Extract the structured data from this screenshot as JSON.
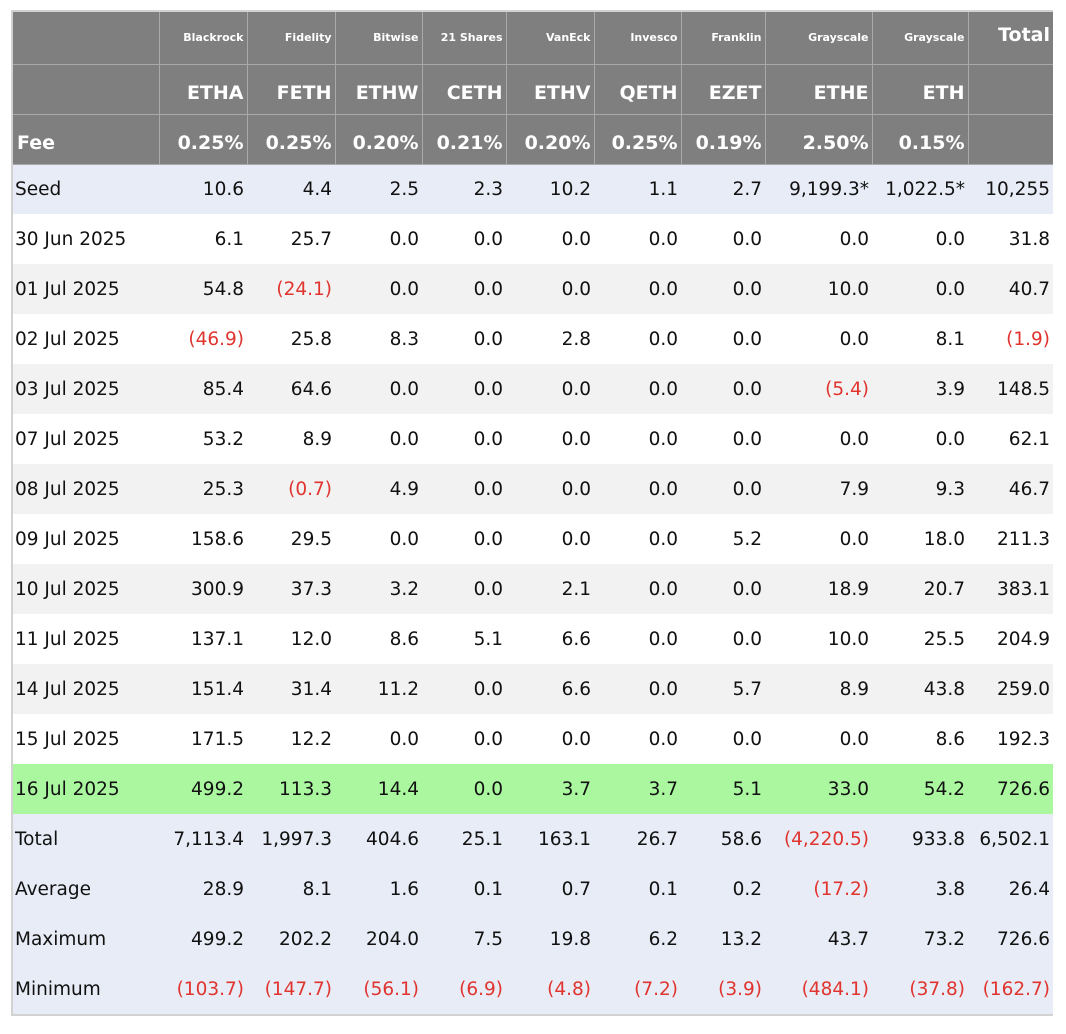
{
  "columns": [
    {
      "issuer": "Blackrock",
      "ticker": "ETHA",
      "fee": "0.25%"
    },
    {
      "issuer": "Fidelity",
      "ticker": "FETH",
      "fee": "0.25%"
    },
    {
      "issuer": "Bitwise",
      "ticker": "ETHW",
      "fee": "0.20%"
    },
    {
      "issuer": "21 Shares",
      "ticker": "CETH",
      "fee": "0.21%"
    },
    {
      "issuer": "VanEck",
      "ticker": "ETHV",
      "fee": "0.20%"
    },
    {
      "issuer": "Invesco",
      "ticker": "QETH",
      "fee": "0.25%"
    },
    {
      "issuer": "Franklin",
      "ticker": "EZET",
      "fee": "0.19%"
    },
    {
      "issuer": "Grayscale",
      "ticker": "ETHE",
      "fee": "2.50%"
    },
    {
      "issuer": "Grayscale",
      "ticker": "ETH",
      "fee": "0.15%"
    }
  ],
  "header": {
    "total_label": "Total",
    "fee_label": "Fee"
  },
  "colors": {
    "header_bg": "#7f7f7f",
    "summary_bg": "#e8ecf6",
    "stripe_bg": "#f2f2f2",
    "highlight_bg": "#aaf7a0",
    "negative_text": "#e0342f"
  },
  "rows": [
    {
      "label": "Seed",
      "style": "seed",
      "values": [
        "10.6",
        "4.4",
        "2.5",
        "2.3",
        "10.2",
        "1.1",
        "2.7",
        "9,199.3*",
        "1,022.5*",
        "10,255"
      ]
    },
    {
      "label": "30 Jun 2025",
      "style": "band-white",
      "values": [
        "6.1",
        "25.7",
        "0.0",
        "0.0",
        "0.0",
        "0.0",
        "0.0",
        "0.0",
        "0.0",
        "31.8"
      ]
    },
    {
      "label": "01 Jul 2025",
      "style": "band-grey",
      "values": [
        "54.8",
        "(24.1)",
        "0.0",
        "0.0",
        "0.0",
        "0.0",
        "0.0",
        "10.0",
        "0.0",
        "40.7"
      ]
    },
    {
      "label": "02 Jul 2025",
      "style": "band-white",
      "values": [
        "(46.9)",
        "25.8",
        "8.3",
        "0.0",
        "2.8",
        "0.0",
        "0.0",
        "0.0",
        "8.1",
        "(1.9)"
      ]
    },
    {
      "label": "03 Jul 2025",
      "style": "band-grey",
      "values": [
        "85.4",
        "64.6",
        "0.0",
        "0.0",
        "0.0",
        "0.0",
        "0.0",
        "(5.4)",
        "3.9",
        "148.5"
      ]
    },
    {
      "label": "07 Jul 2025",
      "style": "band-white",
      "values": [
        "53.2",
        "8.9",
        "0.0",
        "0.0",
        "0.0",
        "0.0",
        "0.0",
        "0.0",
        "0.0",
        "62.1"
      ]
    },
    {
      "label": "08 Jul 2025",
      "style": "band-grey",
      "values": [
        "25.3",
        "(0.7)",
        "4.9",
        "0.0",
        "0.0",
        "0.0",
        "0.0",
        "7.9",
        "9.3",
        "46.7"
      ]
    },
    {
      "label": "09 Jul 2025",
      "style": "band-white",
      "values": [
        "158.6",
        "29.5",
        "0.0",
        "0.0",
        "0.0",
        "0.0",
        "5.2",
        "0.0",
        "18.0",
        "211.3"
      ]
    },
    {
      "label": "10 Jul 2025",
      "style": "band-grey",
      "values": [
        "300.9",
        "37.3",
        "3.2",
        "0.0",
        "2.1",
        "0.0",
        "0.0",
        "18.9",
        "20.7",
        "383.1"
      ]
    },
    {
      "label": "11 Jul 2025",
      "style": "band-white",
      "values": [
        "137.1",
        "12.0",
        "8.6",
        "5.1",
        "6.6",
        "0.0",
        "0.0",
        "10.0",
        "25.5",
        "204.9"
      ]
    },
    {
      "label": "14 Jul 2025",
      "style": "band-grey",
      "values": [
        "151.4",
        "31.4",
        "11.2",
        "0.0",
        "6.6",
        "0.0",
        "5.7",
        "8.9",
        "43.8",
        "259.0"
      ]
    },
    {
      "label": "15 Jul 2025",
      "style": "band-white",
      "values": [
        "171.5",
        "12.2",
        "0.0",
        "0.0",
        "0.0",
        "0.0",
        "0.0",
        "0.0",
        "8.6",
        "192.3"
      ]
    },
    {
      "label": "16 Jul 2025",
      "style": "highlight",
      "values": [
        "499.2",
        "113.3",
        "14.4",
        "0.0",
        "3.7",
        "3.7",
        "5.1",
        "33.0",
        "54.2",
        "726.6"
      ]
    },
    {
      "label": "Total",
      "style": "summary",
      "values": [
        "7,113.4",
        "1,997.3",
        "404.6",
        "25.1",
        "163.1",
        "26.7",
        "58.6",
        "(4,220.5)",
        "933.8",
        "6,502.1"
      ]
    },
    {
      "label": "Average",
      "style": "summary",
      "values": [
        "28.9",
        "8.1",
        "1.6",
        "0.1",
        "0.7",
        "0.1",
        "0.2",
        "(17.2)",
        "3.8",
        "26.4"
      ]
    },
    {
      "label": "Maximum",
      "style": "summary",
      "values": [
        "499.2",
        "202.2",
        "204.0",
        "7.5",
        "19.8",
        "6.2",
        "13.2",
        "43.7",
        "73.2",
        "726.6"
      ]
    },
    {
      "label": "Minimum",
      "style": "summary",
      "values": [
        "(103.7)",
        "(147.7)",
        "(56.1)",
        "(6.9)",
        "(4.8)",
        "(7.2)",
        "(3.9)",
        "(484.1)",
        "(37.8)",
        "(162.7)"
      ]
    }
  ]
}
